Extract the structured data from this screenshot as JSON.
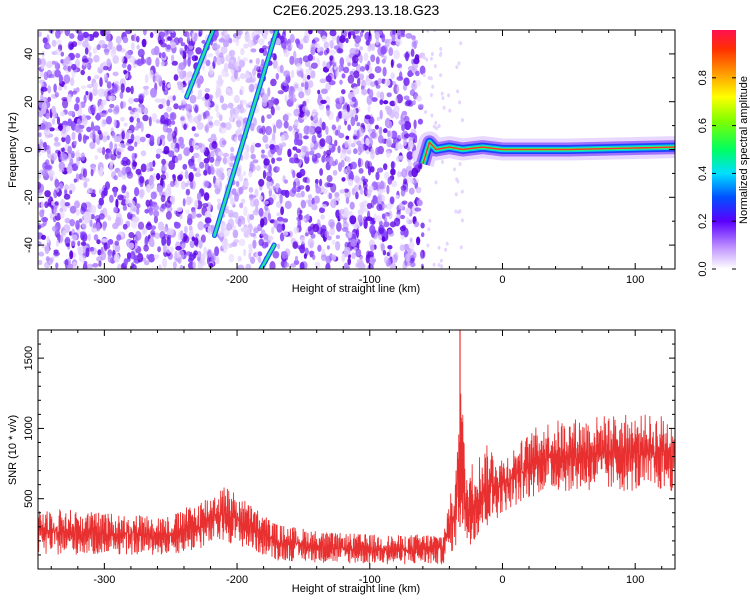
{
  "chart_data": [
    {
      "type": "heatmap",
      "title": "C2E6.2025.293.13.18.G23",
      "xlabel": "Height of straight line (km)",
      "ylabel": "Frequency (Hz)",
      "xlim": [
        -350,
        130
      ],
      "ylim": [
        -50,
        50
      ],
      "x_ticks": [
        "-300",
        "-200",
        "-100",
        "0",
        "100"
      ],
      "x_tick_values": [
        -300,
        -200,
        -100,
        0,
        100
      ],
      "y_ticks": [
        "-40",
        "-20",
        "0",
        "20",
        "40"
      ],
      "y_tick_values": [
        -40,
        -20,
        0,
        20,
        40
      ],
      "colorbar": {
        "label": "Normalized spectral amplitude",
        "range": [
          0,
          1
        ],
        "ticks": [
          "0.0",
          "0.2",
          "0.4",
          "0.6",
          "0.8"
        ],
        "tick_values": [
          0,
          0.2,
          0.4,
          0.6,
          0.8
        ]
      },
      "noise_region_x": [
        -350,
        -60
      ],
      "traces": [
        {
          "x": [
            -238,
            -218
          ],
          "y": [
            22,
            50
          ]
        },
        {
          "x": [
            -217,
            -170
          ],
          "y": [
            -36,
            50
          ]
        },
        {
          "x": [
            -182,
            -172
          ],
          "y": [
            -50,
            -40
          ]
        }
      ],
      "band": {
        "x": [
          -60,
          130
        ],
        "points": [
          [
            -60,
            -6
          ],
          [
            -55,
            3
          ],
          [
            -50,
            0
          ],
          [
            -40,
            1
          ],
          [
            -30,
            0
          ],
          [
            -15,
            1
          ],
          [
            0,
            0
          ],
          [
            50,
            0
          ],
          [
            130,
            1
          ]
        ]
      }
    },
    {
      "type": "line",
      "xlabel": "Height of straight line (km)",
      "ylabel": "SNR (10 * v/v)",
      "xlim": [
        -350,
        130
      ],
      "ylim": [
        0,
        1700
      ],
      "x_ticks": [
        "-300",
        "-200",
        "-100",
        "0",
        "100"
      ],
      "x_tick_values": [
        -300,
        -200,
        -100,
        0,
        100
      ],
      "y_ticks": [
        "500",
        "1000",
        "1500"
      ],
      "y_tick_values": [
        500,
        1000,
        1500
      ],
      "color": "#e83030",
      "series": [
        {
          "envelope": [
            {
              "x": -350,
              "low": 100,
              "high": 450
            },
            {
              "x": -300,
              "low": 100,
              "high": 400
            },
            {
              "x": -250,
              "low": 100,
              "high": 380
            },
            {
              "x": -230,
              "low": 130,
              "high": 480
            },
            {
              "x": -210,
              "low": 200,
              "high": 600
            },
            {
              "x": -195,
              "low": 150,
              "high": 500
            },
            {
              "x": -170,
              "low": 60,
              "high": 320
            },
            {
              "x": -130,
              "low": 40,
              "high": 260
            },
            {
              "x": -80,
              "low": 30,
              "high": 240
            },
            {
              "x": -45,
              "low": 30,
              "high": 260
            },
            {
              "x": -40,
              "low": 100,
              "high": 500
            },
            {
              "x": -35,
              "low": 150,
              "high": 700
            },
            {
              "x": -32,
              "low": 300,
              "high": 1700
            },
            {
              "x": -28,
              "low": 150,
              "high": 700
            },
            {
              "x": -20,
              "low": 200,
              "high": 800
            },
            {
              "x": -10,
              "low": 300,
              "high": 900
            },
            {
              "x": 0,
              "low": 400,
              "high": 800
            },
            {
              "x": 30,
              "low": 550,
              "high": 1050
            },
            {
              "x": 80,
              "low": 550,
              "high": 1100
            },
            {
              "x": 130,
              "low": 550,
              "high": 1100
            }
          ]
        }
      ]
    }
  ]
}
